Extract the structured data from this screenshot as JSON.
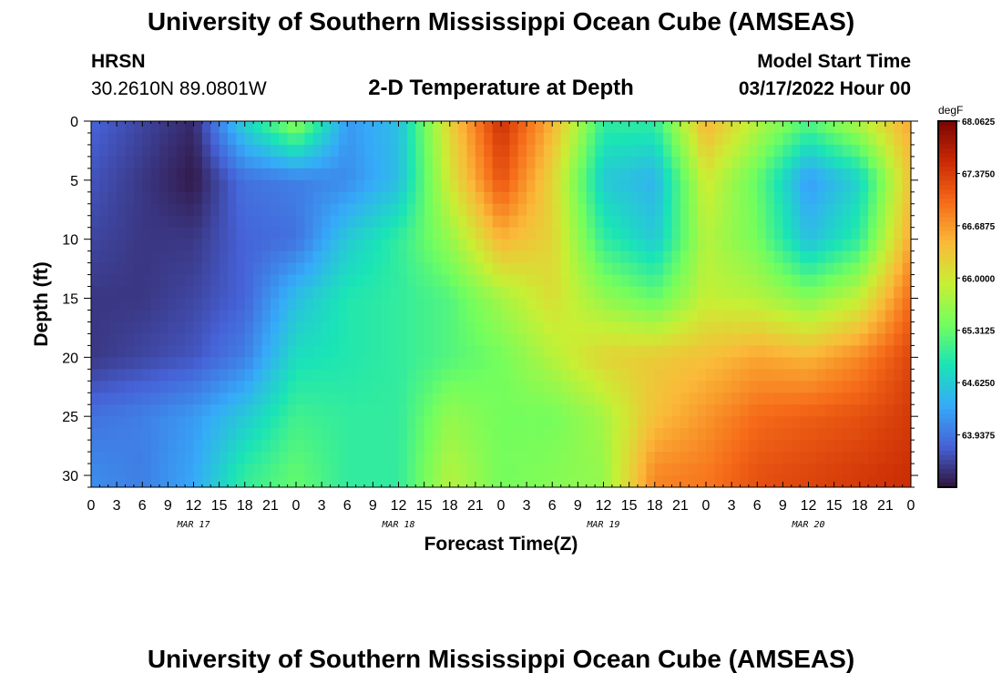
{
  "header": {
    "title": "University of Southern Mississippi Ocean Cube (AMSEAS)",
    "station": "HRSN",
    "coordinates": "30.2610N  89.0801W",
    "subtitle": "2-D Temperature at Depth",
    "model_start_label": "Model Start Time",
    "model_start_value": "03/17/2022 Hour 00"
  },
  "footer": {
    "title": "University of Southern Mississippi Ocean Cube (AMSEAS)"
  },
  "chart_data": {
    "type": "heatmap",
    "xlabel": "Forecast Time(Z)",
    "ylabel": "Depth (ft)",
    "x_tick_labels": [
      "0",
      "3",
      "6",
      "9",
      "12",
      "15",
      "18",
      "21",
      "0",
      "3",
      "6",
      "9",
      "12",
      "15",
      "18",
      "21",
      "0",
      "3",
      "6",
      "9",
      "12",
      "15",
      "18",
      "21",
      "0",
      "3",
      "6",
      "9",
      "12",
      "15",
      "18",
      "21",
      "0"
    ],
    "x_range_hours": [
      0,
      96
    ],
    "day_labels": [
      {
        "label": "MAR 17",
        "hour": 12
      },
      {
        "label": "MAR 18",
        "hour": 36
      },
      {
        "label": "MAR 19",
        "hour": 60
      },
      {
        "label": "MAR 20",
        "hour": 84
      }
    ],
    "y_ticks": [
      0,
      5,
      10,
      15,
      20,
      25,
      30
    ],
    "y_range_ft": [
      0,
      31
    ],
    "y_inverted": true,
    "colorbar": {
      "units": "degF",
      "min": 63.25,
      "max": 68.0625,
      "tick_labels": [
        "68.0625",
        "67.3750",
        "66.6875",
        "66.0000",
        "65.3125",
        "64.6250",
        "63.9375"
      ],
      "colors": [
        "#30123b",
        "#4662d7",
        "#36aaf9",
        "#1ae4b6",
        "#72fe5e",
        "#c8ef34",
        "#faba39",
        "#f66b19",
        "#ca2a04",
        "#7a0403"
      ]
    },
    "hours": [
      0,
      6,
      12,
      18,
      24,
      30,
      36,
      42,
      48,
      54,
      60,
      66,
      72,
      78,
      84,
      90,
      96
    ],
    "depths_ft": [
      0,
      5,
      10,
      15,
      20,
      25,
      30
    ],
    "temperature_degF": [
      [
        63.8,
        63.6,
        63.4,
        64.7,
        65.6,
        64.2,
        64.5,
        66.2,
        67.5,
        66.5,
        65.0,
        65.0,
        66.5,
        65.8,
        65.2,
        65.8,
        66.6
      ],
      [
        63.7,
        63.5,
        63.3,
        63.9,
        64.0,
        64.1,
        64.5,
        66.0,
        67.2,
        66.2,
        64.6,
        64.4,
        66.0,
        65.3,
        64.2,
        64.7,
        66.4
      ],
      [
        63.6,
        63.5,
        63.5,
        63.8,
        63.9,
        64.6,
        65.0,
        65.6,
        66.5,
        66.2,
        65.0,
        64.6,
        65.8,
        65.4,
        64.5,
        65.0,
        66.6
      ],
      [
        63.5,
        63.5,
        63.6,
        63.8,
        64.5,
        64.9,
        65.0,
        65.2,
        65.7,
        66.1,
        65.6,
        65.3,
        65.9,
        65.8,
        65.5,
        65.9,
        67.0
      ],
      [
        63.5,
        63.6,
        63.7,
        64.0,
        64.8,
        64.9,
        65.0,
        65.2,
        65.4,
        65.8,
        66.2,
        66.3,
        66.4,
        66.6,
        66.5,
        66.8,
        67.3
      ],
      [
        63.9,
        64.0,
        64.2,
        64.6,
        65.1,
        65.0,
        65.0,
        65.6,
        65.4,
        65.4,
        65.7,
        66.4,
        66.7,
        67.0,
        67.1,
        67.2,
        67.4
      ],
      [
        64.1,
        64.0,
        64.3,
        65.0,
        65.3,
        65.0,
        65.0,
        65.8,
        65.4,
        65.5,
        65.6,
        66.8,
        66.9,
        67.2,
        67.3,
        67.4,
        67.5
      ]
    ]
  }
}
